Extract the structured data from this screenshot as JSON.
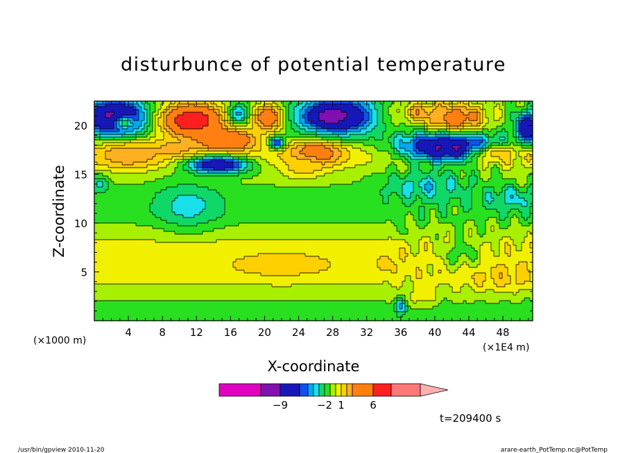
{
  "chart_data": {
    "type": "heatmap",
    "title": "disturbunce of potential temperature",
    "xlabel": "X-coordinate",
    "ylabel": "Z-coordinate",
    "x_unit_left": "(×1000 m)",
    "x_unit_right": "(×1E4 m)",
    "x_ticks": [
      "4",
      "8",
      "12",
      "16",
      "20",
      "24",
      "28",
      "32",
      "36",
      "40",
      "44",
      "48"
    ],
    "y_ticks": [
      "5",
      "10",
      "15",
      "20"
    ],
    "xlim": [
      0,
      51.5
    ],
    "ylim": [
      0,
      22.5
    ],
    "timestamp": "t=209400 s",
    "footer_left": "/usr/bin/gpview  2010-11-20",
    "footer_right": "arare-earth_PotTemp.nc@PotTemp",
    "colorbar_labels": [
      {
        "text": "−9",
        "value": -9
      },
      {
        "text": "−2",
        "value": -2
      },
      {
        "text": "1",
        "value": 1
      },
      {
        "text": "6",
        "value": 6
      }
    ],
    "levels": [
      {
        "min": -15,
        "max": -11,
        "color": "#e000c0"
      },
      {
        "min": -11,
        "max": -9,
        "color": "#8010b0"
      },
      {
        "min": -9,
        "max": -6,
        "color": "#1818b8"
      },
      {
        "min": -6,
        "max": -5,
        "color": "#1050f0"
      },
      {
        "min": -5,
        "max": -4,
        "color": "#00a8f0"
      },
      {
        "min": -4,
        "max": -3,
        "color": "#18e0e8"
      },
      {
        "min": -3,
        "max": -2,
        "color": "#10d868"
      },
      {
        "min": -2,
        "max": -1,
        "color": "#28e020"
      },
      {
        "min": -1,
        "max": 0,
        "color": "#a8f000"
      },
      {
        "min": 0,
        "max": 1,
        "color": "#f0f000"
      },
      {
        "min": 1,
        "max": 2,
        "color": "#ffd000"
      },
      {
        "min": 2,
        "max": 3,
        "color": "#ffb020"
      },
      {
        "min": 3,
        "max": 6,
        "color": "#ff8010"
      },
      {
        "min": 6,
        "max": 9,
        "color": "#ff2020"
      },
      {
        "min": 9,
        "max": 15,
        "color": "#ff7878"
      },
      {
        "min": 15,
        "max": 20,
        "color": "#ffb0b0"
      }
    ],
    "bands": [
      {
        "z": 0.0,
        "v": -1.5
      },
      {
        "z": 1.3,
        "v": -1.5
      },
      {
        "z": 2.5,
        "v": -0.6
      },
      {
        "z": 5.0,
        "v": 0.6
      },
      {
        "z": 7.5,
        "v": 0.5
      },
      {
        "z": 9.0,
        "v": -0.5
      },
      {
        "z": 11.0,
        "v": -1.5
      },
      {
        "z": 13.0,
        "v": -1.4
      },
      {
        "z": 14.5,
        "v": -0.8
      },
      {
        "z": 17.0,
        "v": 0.5
      },
      {
        "z": 19.0,
        "v": -1.0
      },
      {
        "z": 21.0,
        "v": -1.0
      },
      {
        "z": 22.5,
        "v": -1.0
      }
    ],
    "blobs": [
      {
        "x": 2.5,
        "z": 20.8,
        "rx": 3.5,
        "rz": 1.8,
        "v": -10.5
      },
      {
        "x": 3.5,
        "z": 20.3,
        "rx": 1.4,
        "rz": 0.8,
        "v": -2.5
      },
      {
        "x": 4.0,
        "z": 17.0,
        "rx": 4.0,
        "rz": 1.4,
        "v": 3.0
      },
      {
        "x": 11.5,
        "z": 20.5,
        "rx": 3.5,
        "rz": 1.7,
        "v": 8.5
      },
      {
        "x": 10.2,
        "z": 20.8,
        "rx": 0.8,
        "rz": 0.5,
        "v": 6.0
      },
      {
        "x": 12.5,
        "z": 20.6,
        "rx": 0.6,
        "rz": 0.45,
        "v": 6.0
      },
      {
        "x": 15.5,
        "z": 18.5,
        "rx": 3.5,
        "rz": 1.2,
        "v": 6.0
      },
      {
        "x": 9.5,
        "z": 17.6,
        "rx": 3.0,
        "rz": 1.0,
        "v": 2.5
      },
      {
        "x": 17.0,
        "z": 21.2,
        "rx": 1.2,
        "rz": 1.0,
        "v": -4.5
      },
      {
        "x": 20.5,
        "z": 20.8,
        "rx": 1.8,
        "rz": 1.3,
        "v": 5.5
      },
      {
        "x": 21.5,
        "z": 18.2,
        "rx": 0.8,
        "rz": 0.6,
        "v": -7.0
      },
      {
        "x": 26.0,
        "z": 17.2,
        "rx": 3.0,
        "rz": 1.3,
        "v": 5.0
      },
      {
        "x": 24.5,
        "z": 15.8,
        "rx": 2.5,
        "rz": 1.3,
        "v": 1.5
      },
      {
        "x": 28.5,
        "z": 21.0,
        "rx": 4.5,
        "rz": 1.8,
        "v": -9.5
      },
      {
        "x": 27.5,
        "z": 20.9,
        "rx": 1.2,
        "rz": 0.7,
        "v": -10.5
      },
      {
        "x": 14.5,
        "z": 16.0,
        "rx": 3.5,
        "rz": 0.9,
        "v": -8.0
      },
      {
        "x": 11.0,
        "z": 11.8,
        "rx": 3.8,
        "rz": 2.2,
        "v": -3.5
      },
      {
        "x": 41.5,
        "z": 17.8,
        "rx": 5.5,
        "rz": 1.5,
        "v": -9.5
      },
      {
        "x": 42.5,
        "z": 20.8,
        "rx": 3.5,
        "rz": 1.4,
        "v": 4.5
      },
      {
        "x": 38.5,
        "z": 21.3,
        "rx": 3.5,
        "rz": 0.9,
        "v": 2.5
      },
      {
        "x": 35.0,
        "z": 20.6,
        "rx": 1.3,
        "rz": 1.3,
        "v": -1.2
      },
      {
        "x": 51.0,
        "z": 19.8,
        "rx": 1.5,
        "rz": 1.5,
        "v": -8.5
      },
      {
        "x": 47.5,
        "z": 17.0,
        "rx": 3.0,
        "rz": 1.0,
        "v": 1.5
      },
      {
        "x": 39.0,
        "z": 13.8,
        "rx": 5.0,
        "rz": 1.6,
        "v": -3.5
      },
      {
        "x": 49.0,
        "z": 12.5,
        "rx": 3.0,
        "rz": 1.2,
        "v": -3.5
      },
      {
        "x": 22.0,
        "z": 5.8,
        "rx": 6.5,
        "rz": 1.3,
        "v": 1.5
      },
      {
        "x": 48.0,
        "z": 4.5,
        "rx": 4.5,
        "rz": 1.3,
        "v": 1.5
      },
      {
        "x": 34.5,
        "z": 5.8,
        "rx": 1.3,
        "rz": 0.8,
        "v": 1.5
      },
      {
        "x": 43.0,
        "z": 7.0,
        "rx": 2.5,
        "rz": 1.6,
        "v": -1.5
      },
      {
        "x": 38.5,
        "z": 2.5,
        "rx": 1.5,
        "rz": 1.2,
        "v": 0.5
      },
      {
        "x": 37.0,
        "z": 9.5,
        "rx": 0.8,
        "rz": 1.5,
        "v": -1.2
      },
      {
        "x": 36.0,
        "z": 1.5,
        "rx": 0.6,
        "rz": 0.8,
        "v": -4.5
      },
      {
        "x": 0.6,
        "z": 14.0,
        "rx": 1.0,
        "rz": 0.8,
        "v": -3.5
      }
    ]
  }
}
